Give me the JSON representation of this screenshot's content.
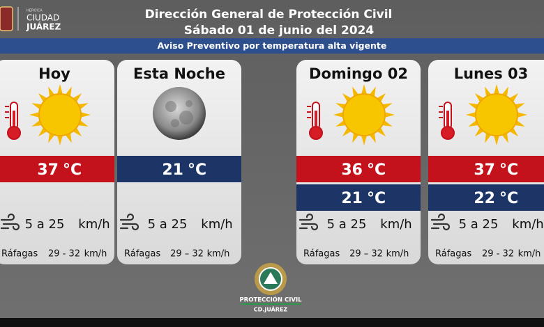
{
  "header": {
    "logo": {
      "line1": "HEROICA",
      "line2": "CIUDAD",
      "line3": "JUÁREZ"
    },
    "title": "Dirección General de Protección Civil",
    "date": "Sábado 01 de junio del 2024"
  },
  "banner": "Aviso Preventivo por temperatura alta vigente",
  "cards": [
    {
      "name": "Hoy",
      "icon": "sun",
      "temps": [
        {
          "value": "37",
          "unit": "°C",
          "color": "#c3121c"
        }
      ],
      "wind": "5 a 25",
      "wind_unit": "km/h",
      "gusts_label": "Ráfagas",
      "gusts": "29 - 32",
      "gusts_unit": "km/h"
    },
    {
      "name": "Esta Noche",
      "icon": "moon",
      "temps": [
        {
          "value": "21",
          "unit": "°C",
          "color": "#1d3466"
        }
      ],
      "wind": "5 a 25",
      "wind_unit": "km/h",
      "gusts_label": "Ráfagas",
      "gusts": "29 – 32",
      "gusts_unit": "km/h"
    },
    {
      "name": "Domingo 02",
      "icon": "sun",
      "temps": [
        {
          "value": "36",
          "unit": "°C",
          "color": "#c3121c"
        },
        {
          "value": "21",
          "unit": "°C",
          "color": "#1d3466"
        }
      ],
      "wind": "5 a 25",
      "wind_unit": "km/h",
      "gusts_label": "Ráfagas",
      "gusts": "29 – 32",
      "gusts_unit": "km/h"
    },
    {
      "name": "Lunes 03",
      "icon": "sun",
      "temps": [
        {
          "value": "37",
          "unit": "°C",
          "color": "#c3121c"
        },
        {
          "value": "22",
          "unit": "°C",
          "color": "#1d3466"
        }
      ],
      "wind": "5 a 25",
      "wind_unit": "km/h",
      "gusts_label": "Ráfagas",
      "gusts": "29 - 32",
      "gusts_unit": "km/h"
    }
  ],
  "footer": {
    "org": "PROTECCIÓN CIVIL",
    "city": "CD.JUÁREZ"
  }
}
